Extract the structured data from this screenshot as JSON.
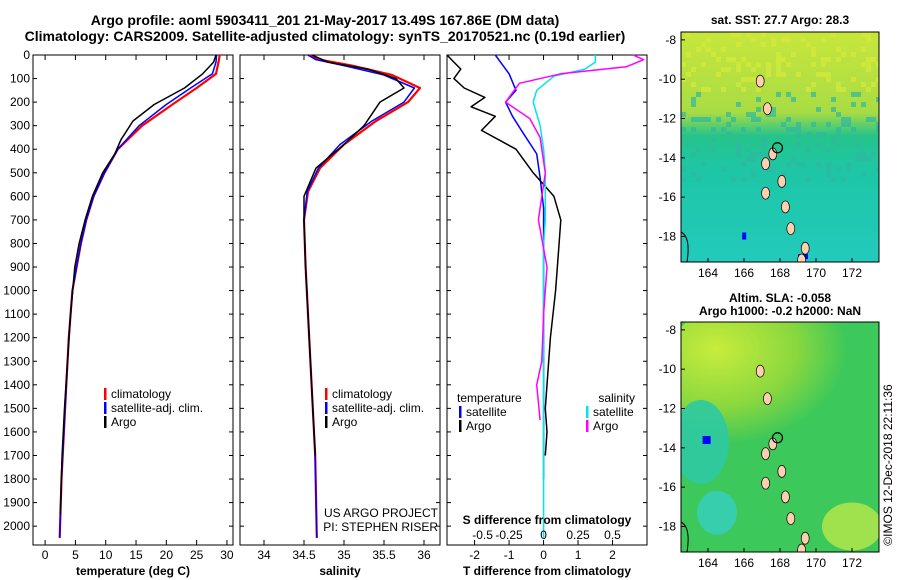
{
  "header": {
    "line1": "Argo profile: aoml 5903411_201 21-May-2017 13.49S 167.86E (DM data)",
    "line2": "Climatology: CARS2009. Satellite-adjusted climatology: synTS_20170521.nc (0.19d earlier)"
  },
  "colors": {
    "climatology": "#ff0000",
    "satellite": "#0000ff",
    "argo": "#000000",
    "salinity_satellite": "#00e5ee",
    "salinity_argo": "#ff00ff"
  },
  "chart_data": [
    {
      "type": "line",
      "xlabel": "temperature (deg C)",
      "xlim": [
        -2,
        31
      ],
      "xticks": [
        "0",
        "5",
        "10",
        "15",
        "20",
        "25",
        "30"
      ],
      "ylim": [
        0,
        2080
      ],
      "yticks": [
        "0",
        "100",
        "200",
        "300",
        "400",
        "500",
        "600",
        "700",
        "800",
        "900",
        "1000",
        "1100",
        "1200",
        "1300",
        "1400",
        "1500",
        "1600",
        "1700",
        "1800",
        "1900",
        "2000"
      ],
      "legend": [
        "climatology",
        "satellite-adj. clim.",
        "Argo"
      ],
      "series": [
        {
          "name": "climatology",
          "color": "#ff0000",
          "x": [
            28.8,
            28.6,
            28.2,
            25,
            21,
            16,
            12,
            9.8,
            8,
            6.8,
            5.9,
            5.2,
            4.5,
            3.9,
            3.5,
            3.1,
            2.7,
            2.4
          ],
          "y": [
            0,
            30,
            80,
            140,
            210,
            300,
            400,
            500,
            600,
            700,
            800,
            900,
            1000,
            1200,
            1400,
            1600,
            1800,
            2050
          ]
        },
        {
          "name": "satellite-adj. clim.",
          "color": "#0000ff",
          "x": [
            28.3,
            28.2,
            27.6,
            24,
            20,
            15.5,
            12,
            9.8,
            8,
            6.8,
            5.9,
            5.2,
            4.5,
            3.9,
            3.5,
            3.1,
            2.7,
            2.4
          ],
          "y": [
            0,
            30,
            80,
            140,
            210,
            300,
            400,
            500,
            600,
            700,
            800,
            900,
            1000,
            1200,
            1400,
            1600,
            1800,
            2050
          ]
        },
        {
          "name": "Argo",
          "color": "#000000",
          "x": [
            28.2,
            27.8,
            26,
            23,
            18,
            14.5,
            12.5,
            11.5,
            9.5,
            7.8,
            6.6,
            5.6,
            4.9,
            4.2,
            3.7,
            3.2,
            2.8,
            2.5
          ],
          "y": [
            0,
            30,
            80,
            140,
            210,
            280,
            360,
            420,
            500,
            600,
            700,
            800,
            900,
            1100,
            1300,
            1500,
            1700,
            1950
          ]
        }
      ]
    },
    {
      "type": "line",
      "xlabel": "salinity",
      "xlim": [
        33.7,
        36.2
      ],
      "xticks": [
        "34",
        "34.5",
        "35",
        "35.5",
        "36"
      ],
      "ylim": [
        0,
        2080
      ],
      "legend": [
        "climatology",
        "satellite-adj. clim.",
        "Argo"
      ],
      "notes": [
        "US ARGO PROJECT",
        "PI: STEPHEN RISER"
      ],
      "series": [
        {
          "name": "climatology",
          "color": "#ff0000",
          "x": [
            34.55,
            34.7,
            35.1,
            35.6,
            35.95,
            35.8,
            35.4,
            35.0,
            34.7,
            34.55,
            34.5,
            34.52,
            34.55,
            34.58,
            34.61,
            34.64,
            34.66
          ],
          "y": [
            0,
            20,
            45,
            85,
            140,
            200,
            280,
            380,
            480,
            580,
            700,
            900,
            1100,
            1300,
            1500,
            1700,
            2050
          ]
        },
        {
          "name": "satellite-adj. clim.",
          "color": "#0000ff",
          "x": [
            34.55,
            34.65,
            35.0,
            35.5,
            35.88,
            35.75,
            35.35,
            34.95,
            34.68,
            34.54,
            34.5,
            34.52,
            34.55,
            34.58,
            34.61,
            34.64,
            34.66
          ],
          "y": [
            0,
            20,
            45,
            85,
            140,
            200,
            280,
            380,
            480,
            580,
            700,
            900,
            1100,
            1300,
            1500,
            1700,
            2050
          ]
        },
        {
          "name": "Argo",
          "color": "#000000",
          "x": [
            34.6,
            34.8,
            35.3,
            35.65,
            35.75,
            35.45,
            35.25,
            35.0,
            34.65,
            34.5,
            34.5,
            34.52,
            34.55,
            34.58,
            34.61,
            34.64
          ],
          "y": [
            0,
            30,
            60,
            100,
            140,
            200,
            300,
            380,
            480,
            600,
            700,
            900,
            1100,
            1300,
            1500,
            1700
          ]
        }
      ]
    },
    {
      "type": "line",
      "xlabel": "T difference from climatology",
      "xlabel_top": "S difference from climatology",
      "xlim": [
        -2.8,
        3
      ],
      "xticks": [
        "-2",
        "-1",
        "0",
        "1",
        "2"
      ],
      "xticks_top": [
        "-0.5",
        "-0.25",
        "0",
        "0.25",
        "0.5"
      ],
      "ylim": [
        0,
        2080
      ],
      "legend_left_title": "temperature",
      "legend_left": [
        "satellite",
        "Argo"
      ],
      "legend_right_title": "salinity",
      "legend_right": [
        "satellite",
        "Argo"
      ],
      "series": [
        {
          "name": "temperature satellite",
          "color": "#0000ff",
          "x": [
            -1.4,
            -1.2,
            -1.0,
            -0.8,
            -1.1,
            -0.9,
            -0.6,
            -0.2,
            -0.1,
            0,
            0,
            0,
            0,
            0,
            0,
            0
          ],
          "y": [
            0,
            40,
            80,
            150,
            200,
            260,
            330,
            420,
            520,
            650,
            800,
            1000,
            1200,
            1400,
            1600,
            1800
          ]
        },
        {
          "name": "temperature Argo",
          "color": "#000000",
          "x": [
            -2.8,
            -2.6,
            -2.4,
            -2.6,
            -2.3,
            -1.7,
            -2.1,
            -1.4,
            -1.8,
            -0.8,
            -0.3,
            0.3,
            0.5,
            0.45,
            0.35,
            0.2,
            0.1,
            0.05,
            0.1,
            0.05
          ],
          "y": [
            0,
            30,
            60,
            100,
            140,
            180,
            220,
            260,
            320,
            400,
            500,
            600,
            700,
            800,
            1000,
            1200,
            1400,
            1500,
            1600,
            1700
          ]
        },
        {
          "name": "salinity satellite",
          "color": "#00e5ee",
          "x": [
            1.5,
            1.5,
            1.2,
            0.3,
            -0.2,
            -0.3,
            -0.1,
            0,
            0.05,
            0.05,
            0.05,
            0,
            0,
            0,
            0,
            0
          ],
          "y": [
            0,
            30,
            60,
            90,
            150,
            200,
            300,
            400,
            500,
            600,
            700,
            800,
            1000,
            1200,
            1500,
            2050
          ]
        },
        {
          "name": "salinity Argo",
          "color": "#ff00ff",
          "x": [
            2.6,
            2.9,
            2.4,
            0.5,
            -0.7,
            -0.9,
            -1.1,
            -0.4,
            -0.1,
            0.05,
            -0.15,
            0.1,
            0,
            -0.05,
            -0.2,
            -0.1
          ],
          "y": [
            0,
            20,
            50,
            80,
            120,
            160,
            200,
            270,
            350,
            500,
            700,
            900,
            1100,
            1300,
            1400,
            1550
          ]
        }
      ]
    },
    {
      "type": "heatmap",
      "title": "sat. SST: 27.7 Argo: 28.3",
      "xlim": [
        162.5,
        173.5
      ],
      "ylim": [
        -19.3,
        -7.6
      ],
      "xticks": [
        "164",
        "166",
        "168",
        "170",
        "172"
      ],
      "yticks": [
        "-8",
        "-10",
        "-12",
        "-14",
        "-16",
        "-18"
      ]
    },
    {
      "type": "heatmap",
      "title": "Altim. SLA: -0.058",
      "subtitle": "Argo h1000: -0.2 h2000: NaN",
      "xlim": [
        162.5,
        173.5
      ],
      "ylim": [
        -19.3,
        -7.6
      ],
      "xticks": [
        "164",
        "166",
        "168",
        "170",
        "172"
      ],
      "yticks": [
        "-8",
        "-10",
        "-12",
        "-14",
        "-16",
        "-18"
      ]
    }
  ],
  "watermark": "©IMOS 12-Dec-2018 22:11:36"
}
